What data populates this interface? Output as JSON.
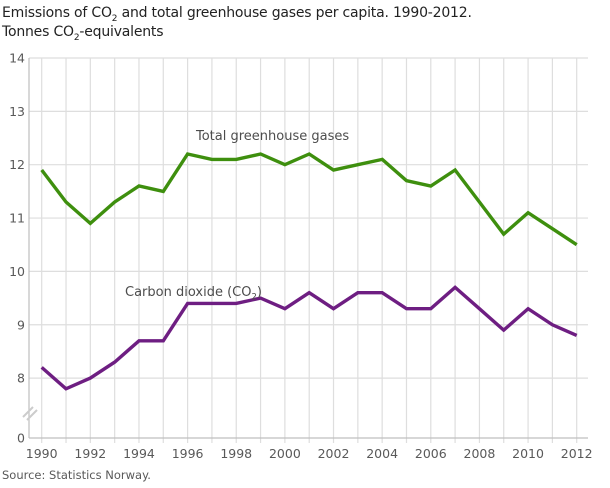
{
  "header": {
    "title_line1": {
      "pre": "Emissions of CO",
      "sub": "2",
      "post": " and total greenhouse gases per capita. 1990-2012."
    },
    "title_line2": {
      "pre": "Tonnes CO",
      "sub": "2",
      "post": "-equivalents"
    }
  },
  "chart_data": {
    "type": "line",
    "title": "Emissions of CO2 and total greenhouse gases per capita. 1990-2012. Tonnes CO2-equivalents",
    "xlabel": "",
    "ylabel": "",
    "x": [
      1990,
      1991,
      1992,
      1993,
      1994,
      1995,
      1996,
      1997,
      1998,
      1999,
      2000,
      2001,
      2002,
      2003,
      2004,
      2005,
      2006,
      2007,
      2008,
      2009,
      2010,
      2011,
      2012
    ],
    "x_tick_labels": [
      "1990",
      "1992",
      "1994",
      "1996",
      "1998",
      "2000",
      "2002",
      "2004",
      "2006",
      "2008",
      "2010",
      "2012"
    ],
    "y_ticks": [
      8,
      9,
      10,
      11,
      12,
      13,
      14
    ],
    "y_axis_zero_label": "0",
    "y_axis_break": true,
    "ylim_display": [
      8,
      14
    ],
    "grid": true,
    "legend_position": "inline-labels",
    "series": [
      {
        "name": "Total greenhouse gases",
        "color": "#3e8f0e",
        "label": {
          "pre": "Total greenhouse gases",
          "sub": "",
          "post": ""
        },
        "values": [
          11.9,
          11.3,
          10.9,
          11.3,
          11.6,
          11.5,
          12.2,
          12.1,
          12.1,
          12.2,
          12.0,
          12.2,
          11.9,
          12.0,
          12.1,
          11.7,
          11.6,
          11.9,
          11.3,
          10.7,
          11.1,
          10.8,
          10.5
        ]
      },
      {
        "name": "Carbon dioxide (CO2)",
        "color": "#6e1e82",
        "label": {
          "pre": "Carbon dioxide (CO",
          "sub": "2",
          "post": ")"
        },
        "values": [
          8.2,
          7.8,
          8.0,
          8.3,
          8.7,
          8.7,
          9.4,
          9.4,
          9.4,
          9.5,
          9.3,
          9.6,
          9.3,
          9.6,
          9.6,
          9.3,
          9.3,
          9.7,
          9.3,
          8.9,
          9.3,
          9.0,
          8.8
        ]
      }
    ]
  },
  "footer": {
    "source": "Source: Statistics Norway."
  },
  "colors": {
    "grid": "#dedede",
    "axis": "#bfbfbf",
    "break_mark": "#cccccc",
    "tick_text": "#595959",
    "title_text": "#222222",
    "series_label_text": "#4d4d4d"
  }
}
